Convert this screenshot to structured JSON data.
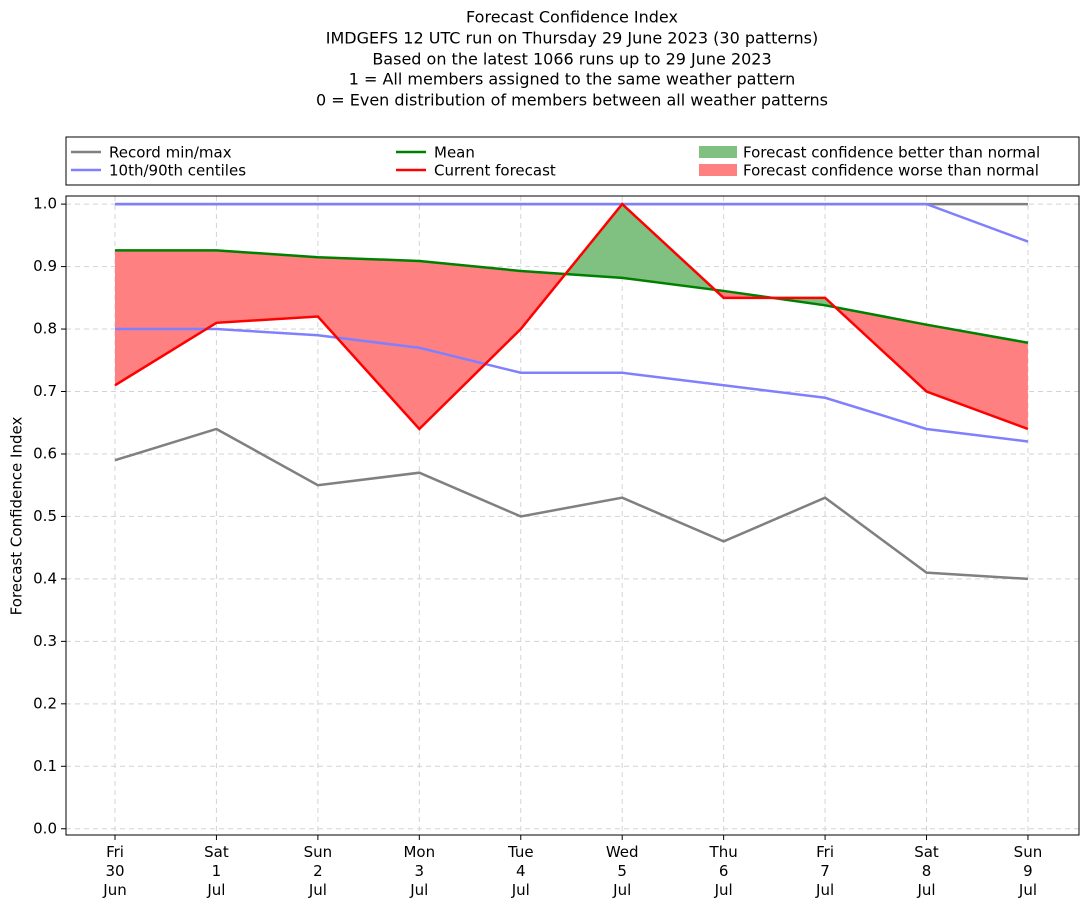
{
  "chart_data": {
    "type": "line",
    "title": "Forecast Confidence Index",
    "subtitle": [
      "IMDGEFS 12 UTC run on Thursday 29 June 2023 (30 patterns)",
      "Based on the latest 1066 runs up to 29 June 2023",
      "1 = All members assigned to the same weather pattern",
      "0 = Even distribution of members between all weather patterns"
    ],
    "y_label": "Forecast Confidence Index",
    "categories": [
      "Fri\n30\nJun",
      "Sat\n1\nJul",
      "Sun\n2\nJul",
      "Mon\n3\nJul",
      "Tue\n4\nJul",
      "Wed\n5\nJul",
      "Thu\n6\nJul",
      "Fri\n7\nJul",
      "Sat\n8\nJul",
      "Sun\n9\nJul"
    ],
    "series": [
      {
        "name": "Record min/max",
        "color": "#808080",
        "values": [
          0.59,
          0.64,
          0.55,
          0.57,
          0.5,
          0.53,
          0.46,
          0.53,
          0.41,
          0.4
        ],
        "upper": [
          1.0,
          1.0,
          1.0,
          1.0,
          1.0,
          1.0,
          1.0,
          1.0,
          1.0,
          1.0
        ]
      },
      {
        "name": "10th/90th centiles",
        "color": "#8080ff",
        "values": [
          0.8,
          0.8,
          0.79,
          0.77,
          0.73,
          0.73,
          0.71,
          0.69,
          0.64,
          0.62
        ],
        "upper": [
          1.0,
          1.0,
          1.0,
          1.0,
          1.0,
          1.0,
          1.0,
          1.0,
          1.0,
          0.94
        ]
      },
      {
        "name": "Mean",
        "color": "#008000",
        "values": [
          0.926,
          0.926,
          0.915,
          0.909,
          0.893,
          0.882,
          0.861,
          0.838,
          0.807,
          0.778
        ]
      },
      {
        "name": "Current forecast",
        "color": "#ff0000",
        "values": [
          0.71,
          0.81,
          0.82,
          0.64,
          0.8,
          1.0,
          0.85,
          0.85,
          0.7,
          0.64
        ]
      }
    ],
    "fills": [
      {
        "name": "Forecast confidence better than normal",
        "color": "#80c080"
      },
      {
        "name": "Forecast confidence worse than normal",
        "color": "#ff8080"
      }
    ],
    "ylim": [
      -0.01,
      1.013
    ],
    "yticks": [
      {
        "value": 0,
        "label": "0.0"
      },
      0.1,
      0.2,
      0.3,
      0.4,
      0.5,
      0.6,
      0.7,
      0.8,
      0.9,
      {
        "value": 1,
        "label": "1.0"
      }
    ],
    "grid": true
  }
}
